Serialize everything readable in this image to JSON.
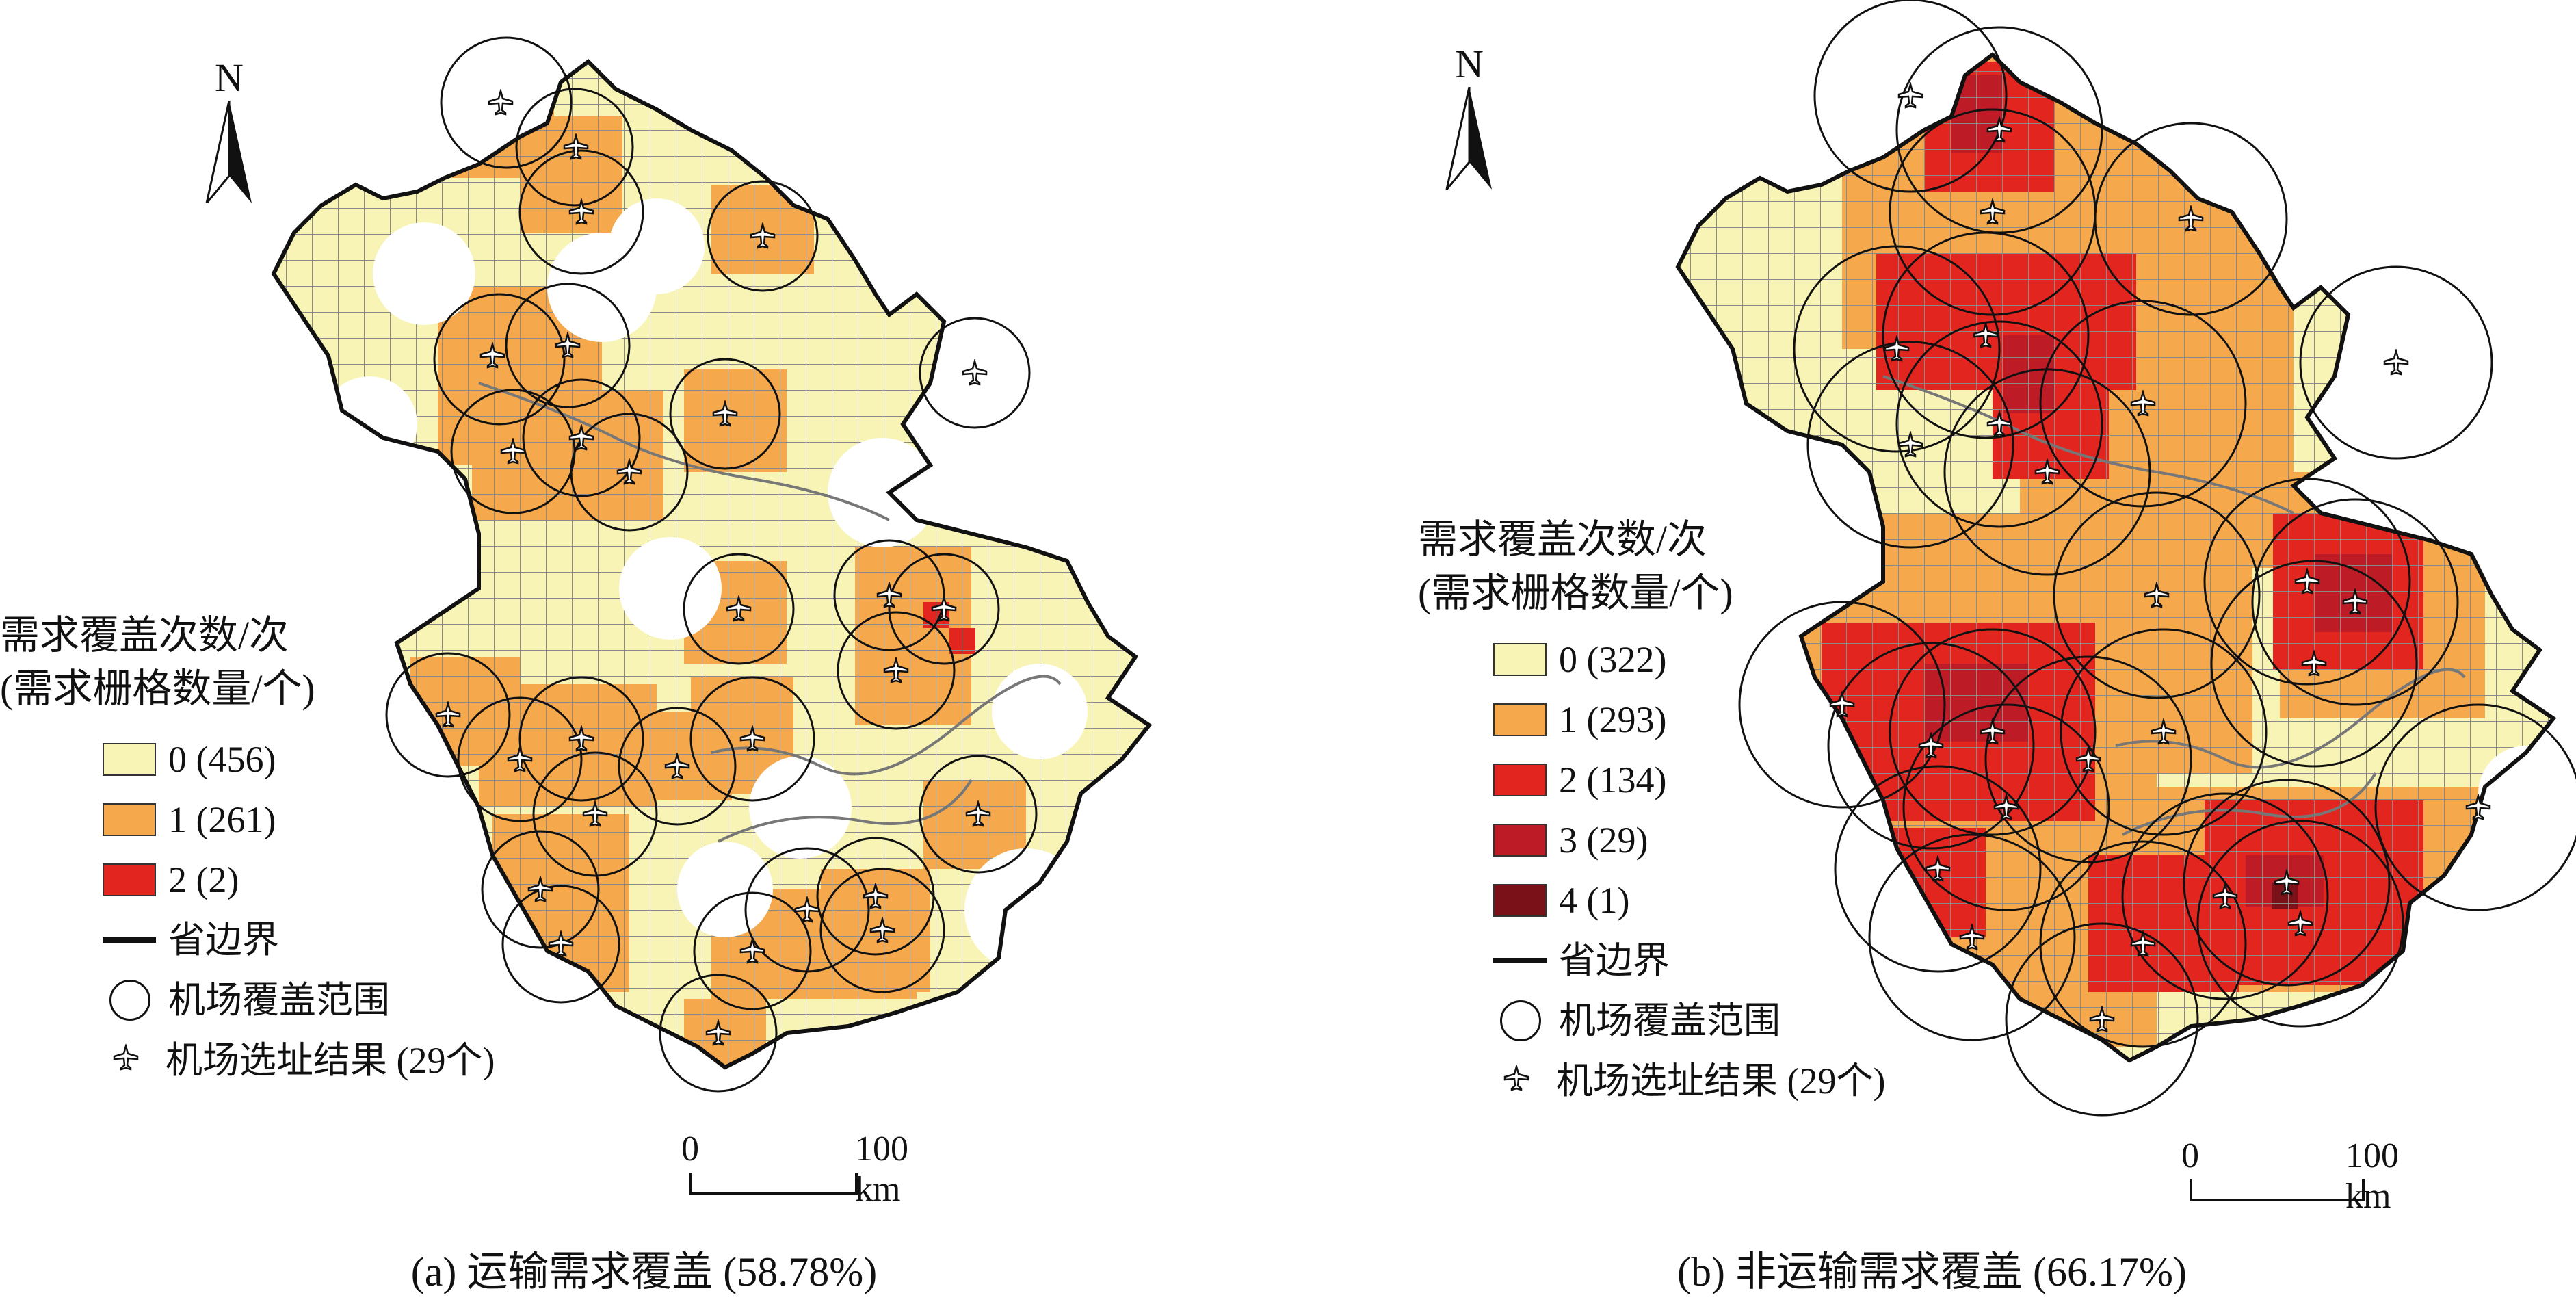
{
  "colors": {
    "level0": "#f8f4b6",
    "level1": "#f5a94c",
    "level2": "#e2251f",
    "level3": "#bd1b25",
    "level4": "#7a1018",
    "grid": "#8a8a8a",
    "boundary": "#111111",
    "river": "#777777"
  },
  "north_label": "N",
  "panels": [
    {
      "caption": "(a) 运输需求覆盖 (58.78%)",
      "legend": {
        "title_line1": "需求覆盖次数/次",
        "title_line2": "(需求栅格数量/个)",
        "classes": [
          {
            "label": "0 (456)",
            "color": "#f8f4b6"
          },
          {
            "label": "1 (261)",
            "color": "#f5a94c"
          },
          {
            "label": "2 (2)",
            "color": "#e2251f"
          }
        ],
        "boundary_label": "省边界",
        "coverage_label": "机场覆盖范围",
        "site_label": "机场选址结果 (29个)"
      },
      "scale": {
        "zero": "0",
        "max": "100 km"
      }
    },
    {
      "caption": "(b) 非运输需求覆盖 (66.17%)",
      "legend": {
        "title_line1": "需求覆盖次数/次",
        "title_line2": "(需求栅格数量/个)",
        "classes": [
          {
            "label": "0 (322)",
            "color": "#f8f4b6"
          },
          {
            "label": "1 (293)",
            "color": "#f5a94c"
          },
          {
            "label": "2 (134)",
            "color": "#e2251f"
          },
          {
            "label": "3 (29)",
            "color": "#bd1b25"
          },
          {
            "label": "4 (1)",
            "color": "#7a1018"
          }
        ],
        "boundary_label": "省边界",
        "coverage_label": "机场覆盖范围",
        "site_label": "机场选址结果 (29个)"
      },
      "scale": {
        "zero": "0",
        "max": "100 km"
      }
    }
  ]
}
